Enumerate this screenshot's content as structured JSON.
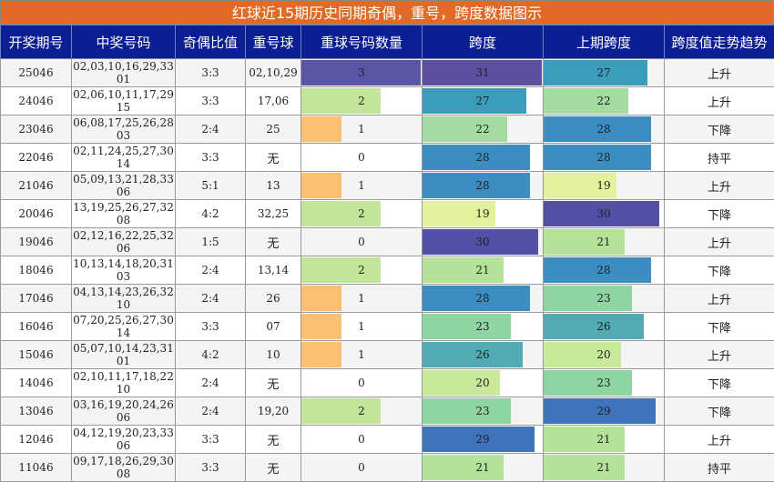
{
  "title": "红球近15期历史同期奇偶，重号，跨度数据图示",
  "columns": [
    "开奖期号",
    "中奖号码",
    "奇偶比值",
    "重号球",
    "重球号码数量",
    "跨度",
    "上期跨度",
    "跨度值走势趋势"
  ],
  "scale": {
    "dup_max": 3,
    "span_max": 31
  },
  "rows": [
    {
      "period": "25046",
      "numbers": "02,03,10,16,29,33 01",
      "odd_even": "3:3",
      "repeat": "02,10,29",
      "dup_count": 3,
      "span": 31,
      "prev_span": 27,
      "trend": "上升"
    },
    {
      "period": "24046",
      "numbers": "02,06,10,11,17,29 15",
      "odd_even": "3:3",
      "repeat": "17,06",
      "dup_count": 2,
      "span": 27,
      "prev_span": 22,
      "trend": "上升"
    },
    {
      "period": "23046",
      "numbers": "06,08,17,25,26,28 03",
      "odd_even": "2:4",
      "repeat": "25",
      "dup_count": 1,
      "span": 22,
      "prev_span": 28,
      "trend": "下降"
    },
    {
      "period": "22046",
      "numbers": "02,11,24,25,27,30 14",
      "odd_even": "3:3",
      "repeat": "无",
      "dup_count": 0,
      "span": 28,
      "prev_span": 28,
      "trend": "持平"
    },
    {
      "period": "21046",
      "numbers": "05,09,13,21,28,33 06",
      "odd_even": "5:1",
      "repeat": "13",
      "dup_count": 1,
      "span": 28,
      "prev_span": 19,
      "trend": "上升"
    },
    {
      "period": "20046",
      "numbers": "13,19,25,26,27,32 08",
      "odd_even": "4:2",
      "repeat": "32,25",
      "dup_count": 2,
      "span": 19,
      "prev_span": 30,
      "trend": "下降"
    },
    {
      "period": "19046",
      "numbers": "02,12,16,22,25,32 06",
      "odd_even": "1:5",
      "repeat": "无",
      "dup_count": 0,
      "span": 30,
      "prev_span": 21,
      "trend": "上升"
    },
    {
      "period": "18046",
      "numbers": "10,13,14,18,20,31 03",
      "odd_even": "2:4",
      "repeat": "13,14",
      "dup_count": 2,
      "span": 21,
      "prev_span": 28,
      "trend": "下降"
    },
    {
      "period": "17046",
      "numbers": "04,13,14,23,26,32 10",
      "odd_even": "2:4",
      "repeat": "26",
      "dup_count": 1,
      "span": 28,
      "prev_span": 23,
      "trend": "上升"
    },
    {
      "period": "16046",
      "numbers": "07,20,25,26,27,30 14",
      "odd_even": "3:3",
      "repeat": "07",
      "dup_count": 1,
      "span": 23,
      "prev_span": 26,
      "trend": "下降"
    },
    {
      "period": "15046",
      "numbers": "05,07,10,14,23,31 01",
      "odd_even": "4:2",
      "repeat": "10",
      "dup_count": 1,
      "span": 26,
      "prev_span": 20,
      "trend": "上升"
    },
    {
      "period": "14046",
      "numbers": "02,10,11,17,18,22 10",
      "odd_even": "2:4",
      "repeat": "无",
      "dup_count": 0,
      "span": 20,
      "prev_span": 23,
      "trend": "下降"
    },
    {
      "period": "13046",
      "numbers": "03,16,19,20,24,26 06",
      "odd_even": "2:4",
      "repeat": "19,20",
      "dup_count": 2,
      "span": 23,
      "prev_span": 29,
      "trend": "下降"
    },
    {
      "period": "12046",
      "numbers": "04,12,19,20,23,33 06",
      "odd_even": "3:3",
      "repeat": "无",
      "dup_count": 0,
      "span": 29,
      "prev_span": 21,
      "trend": "上升"
    },
    {
      "period": "11046",
      "numbers": "09,17,18,26,29,30 08",
      "odd_even": "3:3",
      "repeat": "无",
      "dup_count": 0,
      "span": 21,
      "prev_span": 21,
      "trend": "持平"
    }
  ],
  "colors": {
    "title_bg": "#e06a26",
    "header_bg": "#0b1e93",
    "dup_colors": {
      "0": "#ffffff",
      "1": "#fdbf71",
      "2": "#c2e59a",
      "3": "#5b55a6"
    },
    "span_colors": {
      "19": "#e3f19a",
      "20": "#c8e99c",
      "21": "#b5e29b",
      "22": "#a3dca0",
      "23": "#8fd4a3",
      "26": "#52aab4",
      "27": "#3c9dbb",
      "28": "#3c8ec2",
      "29": "#3f74bc",
      "30": "#5150a4",
      "31": "#5c50a0"
    }
  }
}
